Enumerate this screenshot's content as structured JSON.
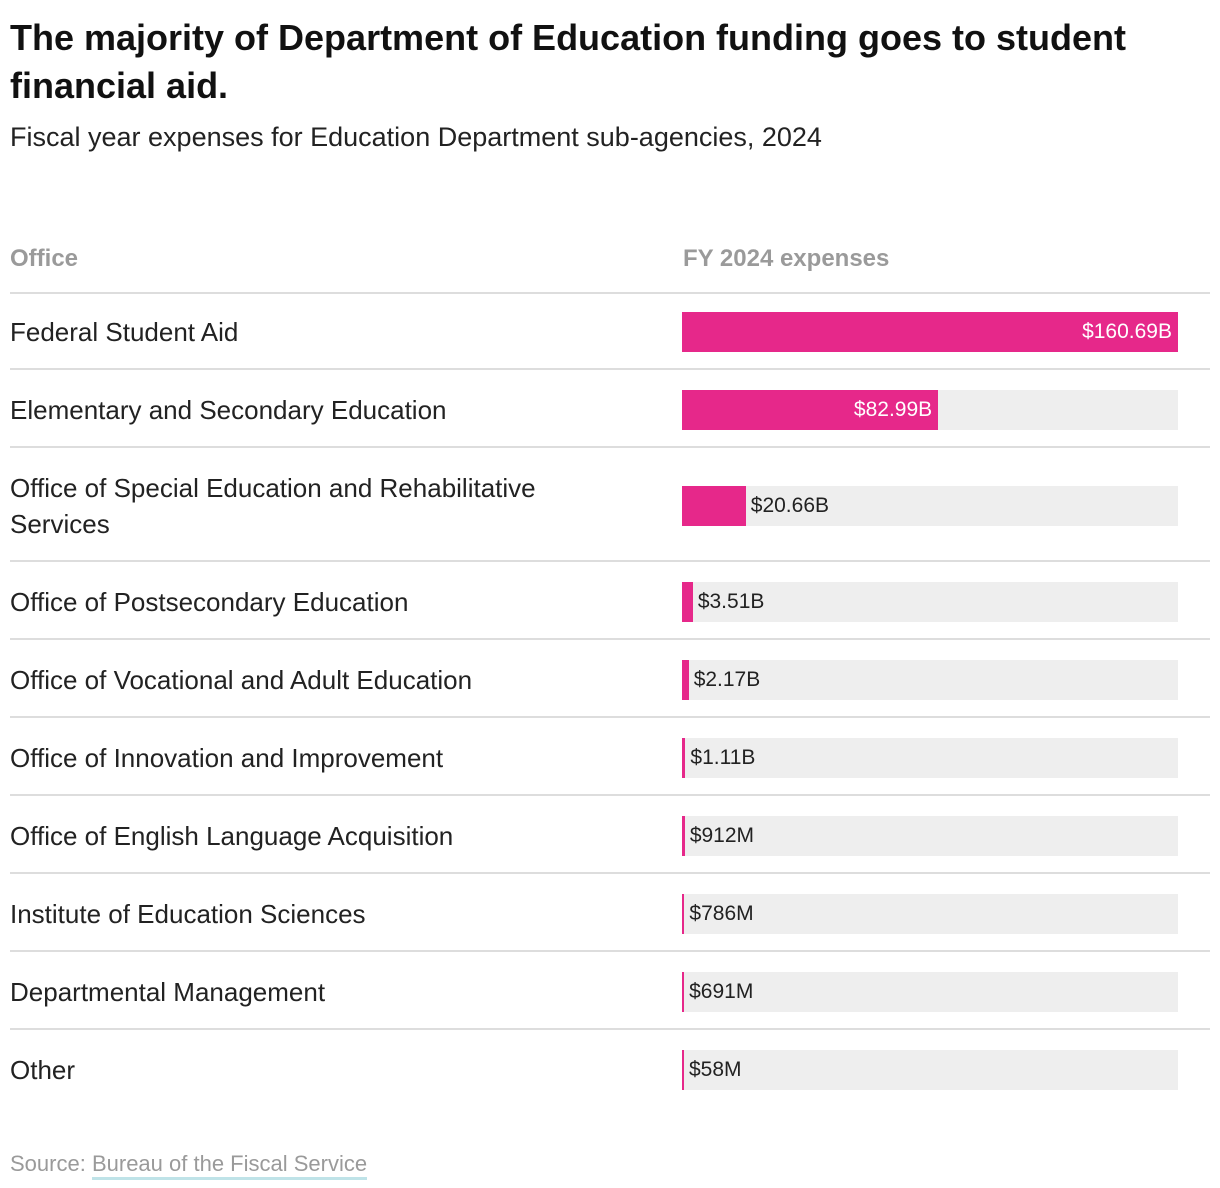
{
  "title": "The majority of Department of Education funding goes to student financial aid.",
  "subtitle": "Fiscal year expenses for Education Department sub-agencies, 2024",
  "columns": {
    "office": "Office",
    "value": "FY 2024 expenses"
  },
  "source": {
    "label": "Source:",
    "link_text": "Bureau of the Fiscal Service"
  },
  "colors": {
    "bar": "#e6288a",
    "track": "#eeeeee",
    "rule": "#dddddd",
    "muted": "#9a9a9a",
    "link_underline": "#bfe3e8"
  },
  "chart_data": {
    "type": "bar",
    "orientation": "horizontal",
    "value_unit": "USD billions",
    "xlim": [
      0,
      160.69
    ],
    "categories": [
      "Federal Student Aid",
      "Elementary and Secondary Education",
      "Office of Special Education and Rehabilitative Services",
      "Office of Postsecondary Education",
      "Office of Vocational and Adult Education",
      "Office of Innovation and Improvement",
      "Office of English Language Acquisition",
      "Institute of Education Sciences",
      "Departmental Management",
      "Other"
    ],
    "values": [
      160.69,
      82.99,
      20.66,
      3.51,
      2.17,
      1.11,
      0.912,
      0.786,
      0.691,
      0.058
    ],
    "value_labels": [
      "$160.69B",
      "$82.99B",
      "$20.66B",
      "$3.51B",
      "$2.17B",
      "$1.11B",
      "$912M",
      "$786M",
      "$691M",
      "$58M"
    ]
  }
}
